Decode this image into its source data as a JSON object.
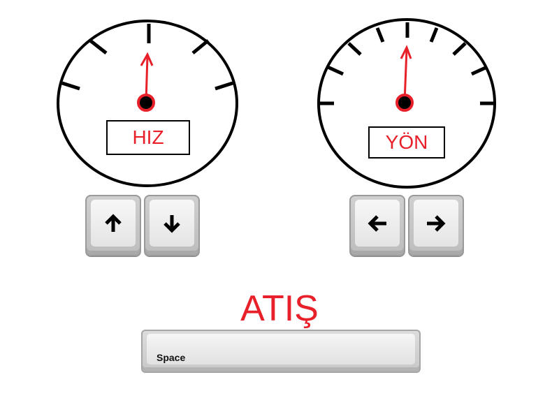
{
  "gauges": {
    "speed": {
      "label": "HIZ"
    },
    "direction": {
      "label": "YÖN"
    }
  },
  "controls": {
    "speed_keys": [
      "up-arrow",
      "down-arrow"
    ],
    "direction_keys": [
      "left-arrow",
      "right-arrow"
    ]
  },
  "fire": {
    "title": "ATIŞ",
    "key_label": "Space"
  },
  "colors": {
    "accent": "#e8202a",
    "ink": "#000000"
  }
}
